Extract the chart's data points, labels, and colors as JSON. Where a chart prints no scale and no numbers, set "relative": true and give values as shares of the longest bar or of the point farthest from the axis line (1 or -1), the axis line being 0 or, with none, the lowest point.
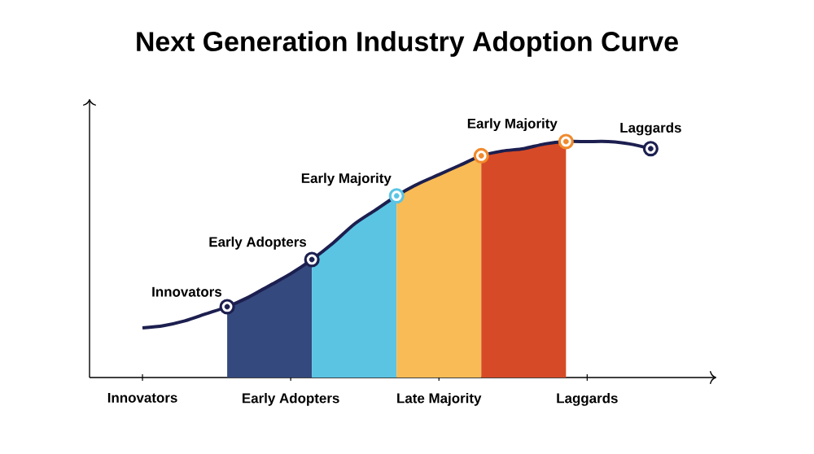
{
  "chart_data": {
    "type": "line",
    "title": "Next Generation Industry Adoption Curve",
    "relative": true,
    "grid": false,
    "categories": [
      "Innovators",
      null,
      null,
      null,
      null,
      null,
      null,
      "Early Adopters",
      null,
      null,
      null,
      null,
      null,
      null,
      "Late Majority",
      null,
      null,
      null,
      null,
      null,
      null,
      "Laggards",
      null,
      null,
      null
    ],
    "series": [
      {
        "type": "area",
        "color": "#34497d",
        "values": [
          null,
          null,
          null,
          null,
          0.3,
          0.34,
          0.39,
          0.44,
          0.5,
          null,
          null,
          null,
          null,
          null,
          null,
          null,
          null,
          null,
          null,
          null,
          null,
          null,
          null,
          null,
          null
        ]
      },
      {
        "type": "area",
        "color": "#5bc4e3",
        "values": [
          null,
          null,
          null,
          null,
          null,
          null,
          null,
          null,
          0.5,
          0.57,
          0.65,
          0.71,
          0.77,
          null,
          null,
          null,
          null,
          null,
          null,
          null,
          null,
          null,
          null,
          null,
          null
        ]
      },
      {
        "type": "area",
        "color": "#f8bb55",
        "values": [
          null,
          null,
          null,
          null,
          null,
          null,
          null,
          null,
          null,
          null,
          null,
          null,
          0.77,
          0.82,
          0.86,
          0.9,
          0.94,
          null,
          null,
          null,
          null,
          null,
          null,
          null,
          null
        ]
      },
      {
        "type": "area",
        "color": "#d64a27",
        "values": [
          null,
          null,
          null,
          null,
          null,
          null,
          null,
          null,
          null,
          null,
          null,
          null,
          null,
          null,
          null,
          null,
          0.94,
          0.96,
          0.97,
          0.99,
          1,
          null,
          null,
          null,
          null
        ]
      },
      {
        "color": "#1c1f4f",
        "marker": "none",
        "values": [
          0.21,
          0.22,
          0.24,
          0.27,
          0.3,
          0.34,
          0.39,
          0.44,
          0.5,
          0.57,
          0.65,
          0.71,
          0.77,
          0.82,
          0.86,
          0.9,
          0.94,
          0.96,
          0.97,
          0.99,
          1,
          1,
          1,
          0.99,
          0.97
        ]
      },
      {
        "type": "scatter",
        "marker": "circle",
        "colors": [
          null,
          null,
          null,
          null,
          "#1c1f4f",
          null,
          null,
          null,
          "#1c1f4f",
          null,
          null,
          null,
          "#5bc4e3",
          null,
          null,
          null,
          "#f08a2c",
          null,
          null,
          null,
          "#f08a2c",
          null,
          null,
          null,
          "#1c1f4f"
        ],
        "values": [
          null,
          null,
          null,
          null,
          0.3,
          null,
          null,
          null,
          0.5,
          null,
          null,
          null,
          0.77,
          null,
          null,
          null,
          0.94,
          null,
          null,
          null,
          1,
          null,
          null,
          null,
          0.97
        ]
      }
    ],
    "annotations": [
      "Innovators",
      "Early Adopters",
      "Early Majority",
      "Early Majority",
      "Laggards"
    ]
  }
}
